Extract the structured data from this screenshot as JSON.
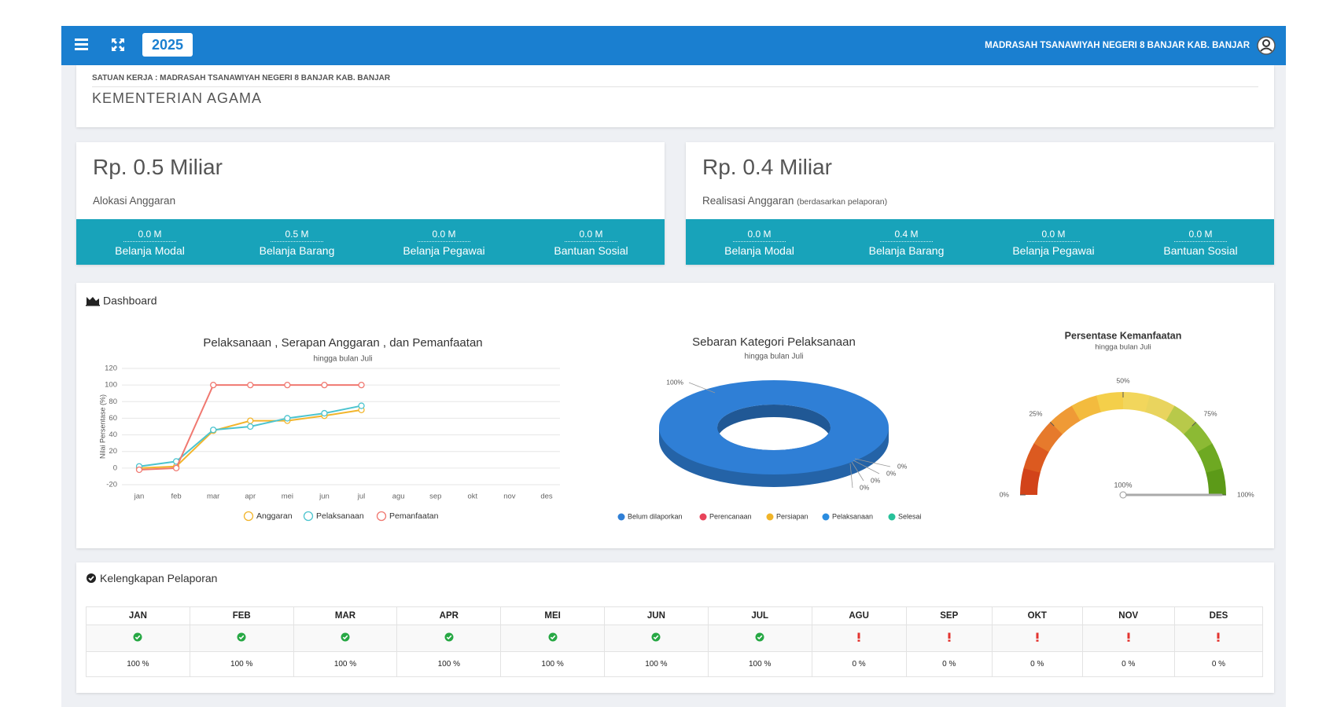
{
  "header": {
    "year": "2025",
    "org": "MADRASAH TSANAWIYAH NEGERI 8 BANJAR KAB. BANJAR"
  },
  "unit": {
    "label": "SATUAN KERJA : MADRASAH TSANAWIYAH NEGERI 8 BANJAR KAB. BANJAR",
    "ministry": "KEMENTERIAN AGAMA"
  },
  "cards": [
    {
      "amount": "Rp. 0.5 Miliar",
      "label": "Alokasi Anggaran",
      "items": [
        {
          "value": "0.0 M",
          "label": "Belanja Modal"
        },
        {
          "value": "0.5 M",
          "label": "Belanja Barang"
        },
        {
          "value": "0.0 M",
          "label": "Belanja Pegawai"
        },
        {
          "value": "0.0 M",
          "label": "Bantuan Sosial"
        }
      ]
    },
    {
      "amount": "Rp. 0.4 Miliar",
      "label": "Realisasi Anggaran",
      "note": "(berdasarkan pelaporan)",
      "items": [
        {
          "value": "0.0 M",
          "label": "Belanja Modal"
        },
        {
          "value": "0.4 M",
          "label": "Belanja Barang"
        },
        {
          "value": "0.0 M",
          "label": "Belanja Pegawai"
        },
        {
          "value": "0.0 M",
          "label": "Bantuan Sosial"
        }
      ]
    }
  ],
  "dashboard": {
    "title": "Dashboard",
    "line_chart": {
      "type": "line",
      "title": "Pelaksanaan , Serapan Anggaran , dan Pemanfaatan",
      "subtitle": "hingga bulan Juli",
      "y_label": "Nilai Persentase (%)",
      "categories": [
        "jan",
        "feb",
        "mar",
        "apr",
        "mei",
        "jun",
        "jul",
        "agu",
        "sep",
        "okt",
        "nov",
        "des"
      ],
      "ylim": [
        -20,
        120
      ],
      "yticks": [
        -20,
        0,
        20,
        40,
        60,
        80,
        100,
        120
      ],
      "grid": true,
      "series": [
        {
          "name": "Anggaran",
          "color": "#f2b52c",
          "values": [
            0,
            2,
            45,
            57,
            57,
            63,
            70,
            null,
            null,
            null,
            null,
            null
          ]
        },
        {
          "name": "Pelaksanaan",
          "color": "#4cc4cf",
          "values": [
            2,
            8,
            46,
            50,
            60,
            66,
            75,
            null,
            null,
            null,
            null,
            null
          ]
        },
        {
          "name": "Pemanfaatan",
          "color": "#f07870",
          "values": [
            -2,
            0,
            100,
            100,
            100,
            100,
            100,
            null,
            null,
            null,
            null,
            null
          ]
        }
      ]
    },
    "donut": {
      "type": "pie",
      "title": "Sebaran Kategori Pelaksanaan",
      "subtitle": "hingga bulan Juli",
      "categories": [
        "Belum dilaporkan",
        "Perencanaan",
        "Persiapan",
        "Pelaksanaan",
        "Selesai"
      ],
      "values": [
        100,
        0,
        0,
        0,
        0
      ],
      "value_labels": [
        "100%",
        "0%",
        "0%",
        "0%",
        "0%"
      ],
      "colors": [
        "#2f7fd6",
        "#e8435a",
        "#f0b429",
        "#2b8de0",
        "#27c19a"
      ]
    },
    "gauge": {
      "type": "gauge",
      "title": "Persentase Kemanfaatan",
      "subtitle": "hingga bulan Juli",
      "value": 100,
      "value_label": "100%",
      "ylim": [
        0,
        100
      ],
      "yticks": [
        {
          "value": 0,
          "label": "0%"
        },
        {
          "value": 25,
          "label": "25%"
        },
        {
          "value": 50,
          "label": "50%"
        },
        {
          "value": 75,
          "label": "75%"
        },
        {
          "value": 100,
          "label": "100%"
        }
      ]
    }
  },
  "reporting": {
    "title": "Kelengkapan Pelaporan",
    "months": [
      "JAN",
      "FEB",
      "MAR",
      "APR",
      "MEI",
      "JUN",
      "JUL",
      "AGU",
      "SEP",
      "OKT",
      "NOV",
      "DES"
    ],
    "complete": [
      true,
      true,
      true,
      true,
      true,
      true,
      true,
      false,
      false,
      false,
      false,
      false
    ],
    "percent": [
      "100 %",
      "100 %",
      "100 %",
      "100 %",
      "100 %",
      "100 %",
      "100 %",
      "0 %",
      "0 %",
      "0 %",
      "0 %",
      "0 %"
    ]
  }
}
